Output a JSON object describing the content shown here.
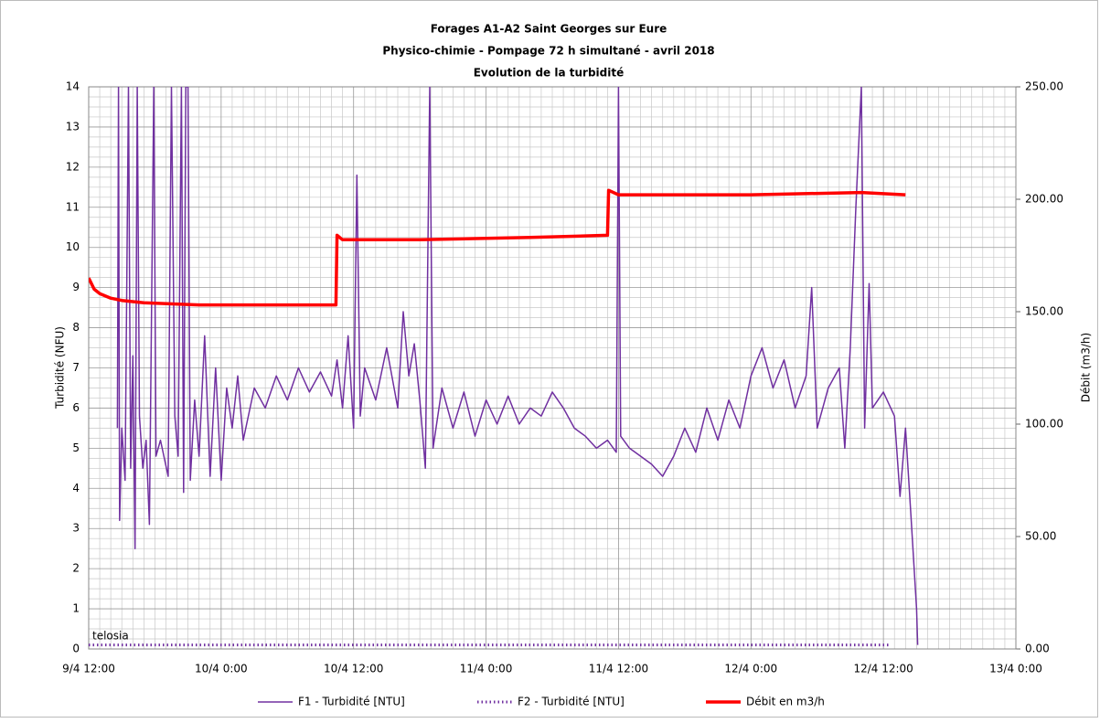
{
  "chart_data": {
    "type": "line",
    "title": [
      "Forages A1-A2 Saint Georges sur Eure",
      "Physico-chimie - Pompage 72 h simultané - avril 2018",
      "Evolution de la turbidité"
    ],
    "y_label": "Turbidité (NFU)",
    "y2_label": "Débit (m3/h)",
    "watermark": "telosia",
    "xlim": [
      0,
      84
    ],
    "xticks": [
      {
        "value": 0,
        "label": "9/4 12:00"
      },
      {
        "value": 12,
        "label": "10/4 0:00"
      },
      {
        "value": 24,
        "label": "10/4 12:00"
      },
      {
        "value": 36,
        "label": "11/4 0:00"
      },
      {
        "value": 48,
        "label": "11/4 12:00"
      },
      {
        "value": 60,
        "label": "12/4 0:00"
      },
      {
        "value": 72,
        "label": "12/4 12:00"
      },
      {
        "value": 84,
        "label": "13/4 0:00"
      }
    ],
    "ylim": [
      0,
      14
    ],
    "yticks": [
      0,
      1,
      2,
      3,
      4,
      5,
      6,
      7,
      8,
      9,
      10,
      11,
      12,
      13,
      14
    ],
    "y2lim": [
      0,
      250
    ],
    "y2ticks": [
      {
        "value": 0,
        "label": "0.00"
      },
      {
        "value": 50,
        "label": "50.00"
      },
      {
        "value": 100,
        "label": "100.00"
      },
      {
        "value": 150,
        "label": "150.00"
      },
      {
        "value": 200,
        "label": "200.00"
      },
      {
        "value": 250,
        "label": "250.00"
      }
    ],
    "grid": true,
    "legend": "bottom",
    "series": [
      {
        "name": "F1 - Turbidité [NTU]",
        "color": "#7030a0",
        "style": "solid",
        "x": [
          2.6,
          2.7,
          2.8,
          3.0,
          3.3,
          3.6,
          3.8,
          4.0,
          4.2,
          4.4,
          4.6,
          4.9,
          5.2,
          5.5,
          5.9,
          6.1,
          6.5,
          7.2,
          7.5,
          7.8,
          8.1,
          8.4,
          8.6,
          8.8,
          9.0,
          9.2,
          9.6,
          10,
          10.5,
          11,
          11.5,
          12,
          12.5,
          13,
          13.5,
          14,
          15,
          16,
          17,
          18,
          19,
          20,
          21,
          22,
          22.5,
          23,
          23.5,
          24,
          24.3,
          24.6,
          25,
          26,
          27,
          28,
          28.5,
          29,
          29.5,
          30,
          30.5,
          30.9,
          31.2,
          32,
          33,
          34,
          35,
          36,
          37,
          38,
          39,
          40,
          41,
          42,
          43,
          44,
          45,
          46,
          47,
          47.8,
          48,
          48.2,
          49,
          50,
          51,
          52,
          53,
          54,
          55,
          56,
          57,
          58,
          59,
          60,
          61,
          62,
          63,
          64,
          65,
          65.5,
          66,
          67,
          68,
          68.5,
          69,
          69.5,
          70,
          70.3,
          70.7,
          71,
          72,
          73,
          73.5,
          74,
          74.5,
          75,
          75.1
        ],
        "values": [
          5.5,
          14,
          3.2,
          5.5,
          4.2,
          14,
          4.5,
          7.3,
          2.5,
          14,
          5.8,
          4.5,
          5.2,
          3.1,
          14,
          4.8,
          5.2,
          4.3,
          14,
          5.8,
          4.8,
          14,
          3.9,
          14,
          14,
          4.2,
          6.2,
          4.8,
          7.8,
          4.3,
          7.0,
          4.2,
          6.5,
          5.5,
          6.8,
          5.2,
          6.5,
          6.0,
          6.8,
          6.2,
          7.0,
          6.4,
          6.9,
          6.3,
          7.2,
          6.0,
          7.8,
          5.5,
          11.8,
          5.8,
          7.0,
          6.2,
          7.5,
          6.0,
          8.4,
          6.8,
          7.6,
          6.2,
          4.5,
          14,
          5.0,
          6.5,
          5.5,
          6.4,
          5.3,
          6.2,
          5.6,
          6.3,
          5.6,
          6.0,
          5.8,
          6.4,
          6.0,
          5.5,
          5.3,
          5.0,
          5.2,
          4.9,
          14,
          5.3,
          5.0,
          4.8,
          4.6,
          4.3,
          4.8,
          5.5,
          4.9,
          6.0,
          5.2,
          6.2,
          5.5,
          6.8,
          7.5,
          6.5,
          7.2,
          6.0,
          6.8,
          9.0,
          5.5,
          6.5,
          7.0,
          5.0,
          7.5,
          11.0,
          14,
          5.5,
          9.1,
          6.0,
          6.4,
          5.8,
          3.8,
          5.5,
          3.3,
          1.0,
          0.1
        ]
      },
      {
        "name": "F2 - Turbidité [NTU]",
        "color": "#7030a0",
        "style": "dotted",
        "x": [
          0,
          72.5
        ],
        "values": [
          0.1,
          0.1
        ]
      },
      {
        "name": "Débit en m3/h",
        "color": "#ff0000",
        "style": "thick",
        "axis": "y2",
        "x": [
          0,
          0.5,
          1,
          2,
          3,
          5,
          10,
          15,
          22.4,
          22.5,
          23,
          30,
          40,
          47,
          47.1,
          48,
          60,
          70,
          74
        ],
        "values": [
          165,
          160,
          158,
          156,
          155,
          154,
          153,
          153,
          153,
          184,
          182,
          182,
          183,
          184,
          204,
          202,
          202,
          203,
          202
        ]
      }
    ]
  }
}
